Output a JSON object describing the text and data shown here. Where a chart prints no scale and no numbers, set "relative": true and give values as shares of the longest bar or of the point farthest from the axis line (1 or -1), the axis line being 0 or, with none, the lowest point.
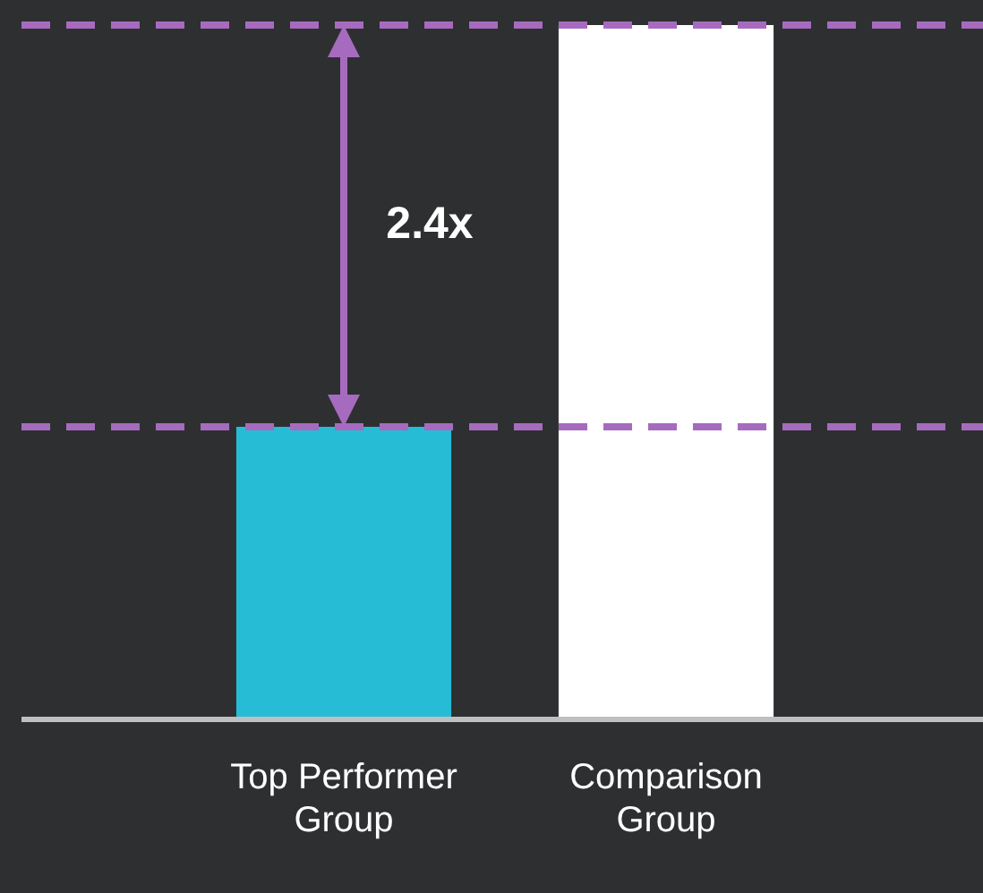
{
  "chart_data": {
    "type": "bar",
    "relative": true,
    "categories": [
      "Top Performer Group",
      "Comparison Group"
    ],
    "colors": [
      "#26bcd6",
      "#ffffff"
    ],
    "values": [
      0.42,
      1
    ],
    "ref_lines": [
      {
        "axis": "y",
        "value": 1,
        "color": "#a66bbf",
        "line_style": "dashed"
      },
      {
        "axis": "y",
        "value": 0.42,
        "color": "#a66bbf",
        "line_style": "dashed"
      }
    ],
    "annotations": [
      "2.4x"
    ]
  }
}
